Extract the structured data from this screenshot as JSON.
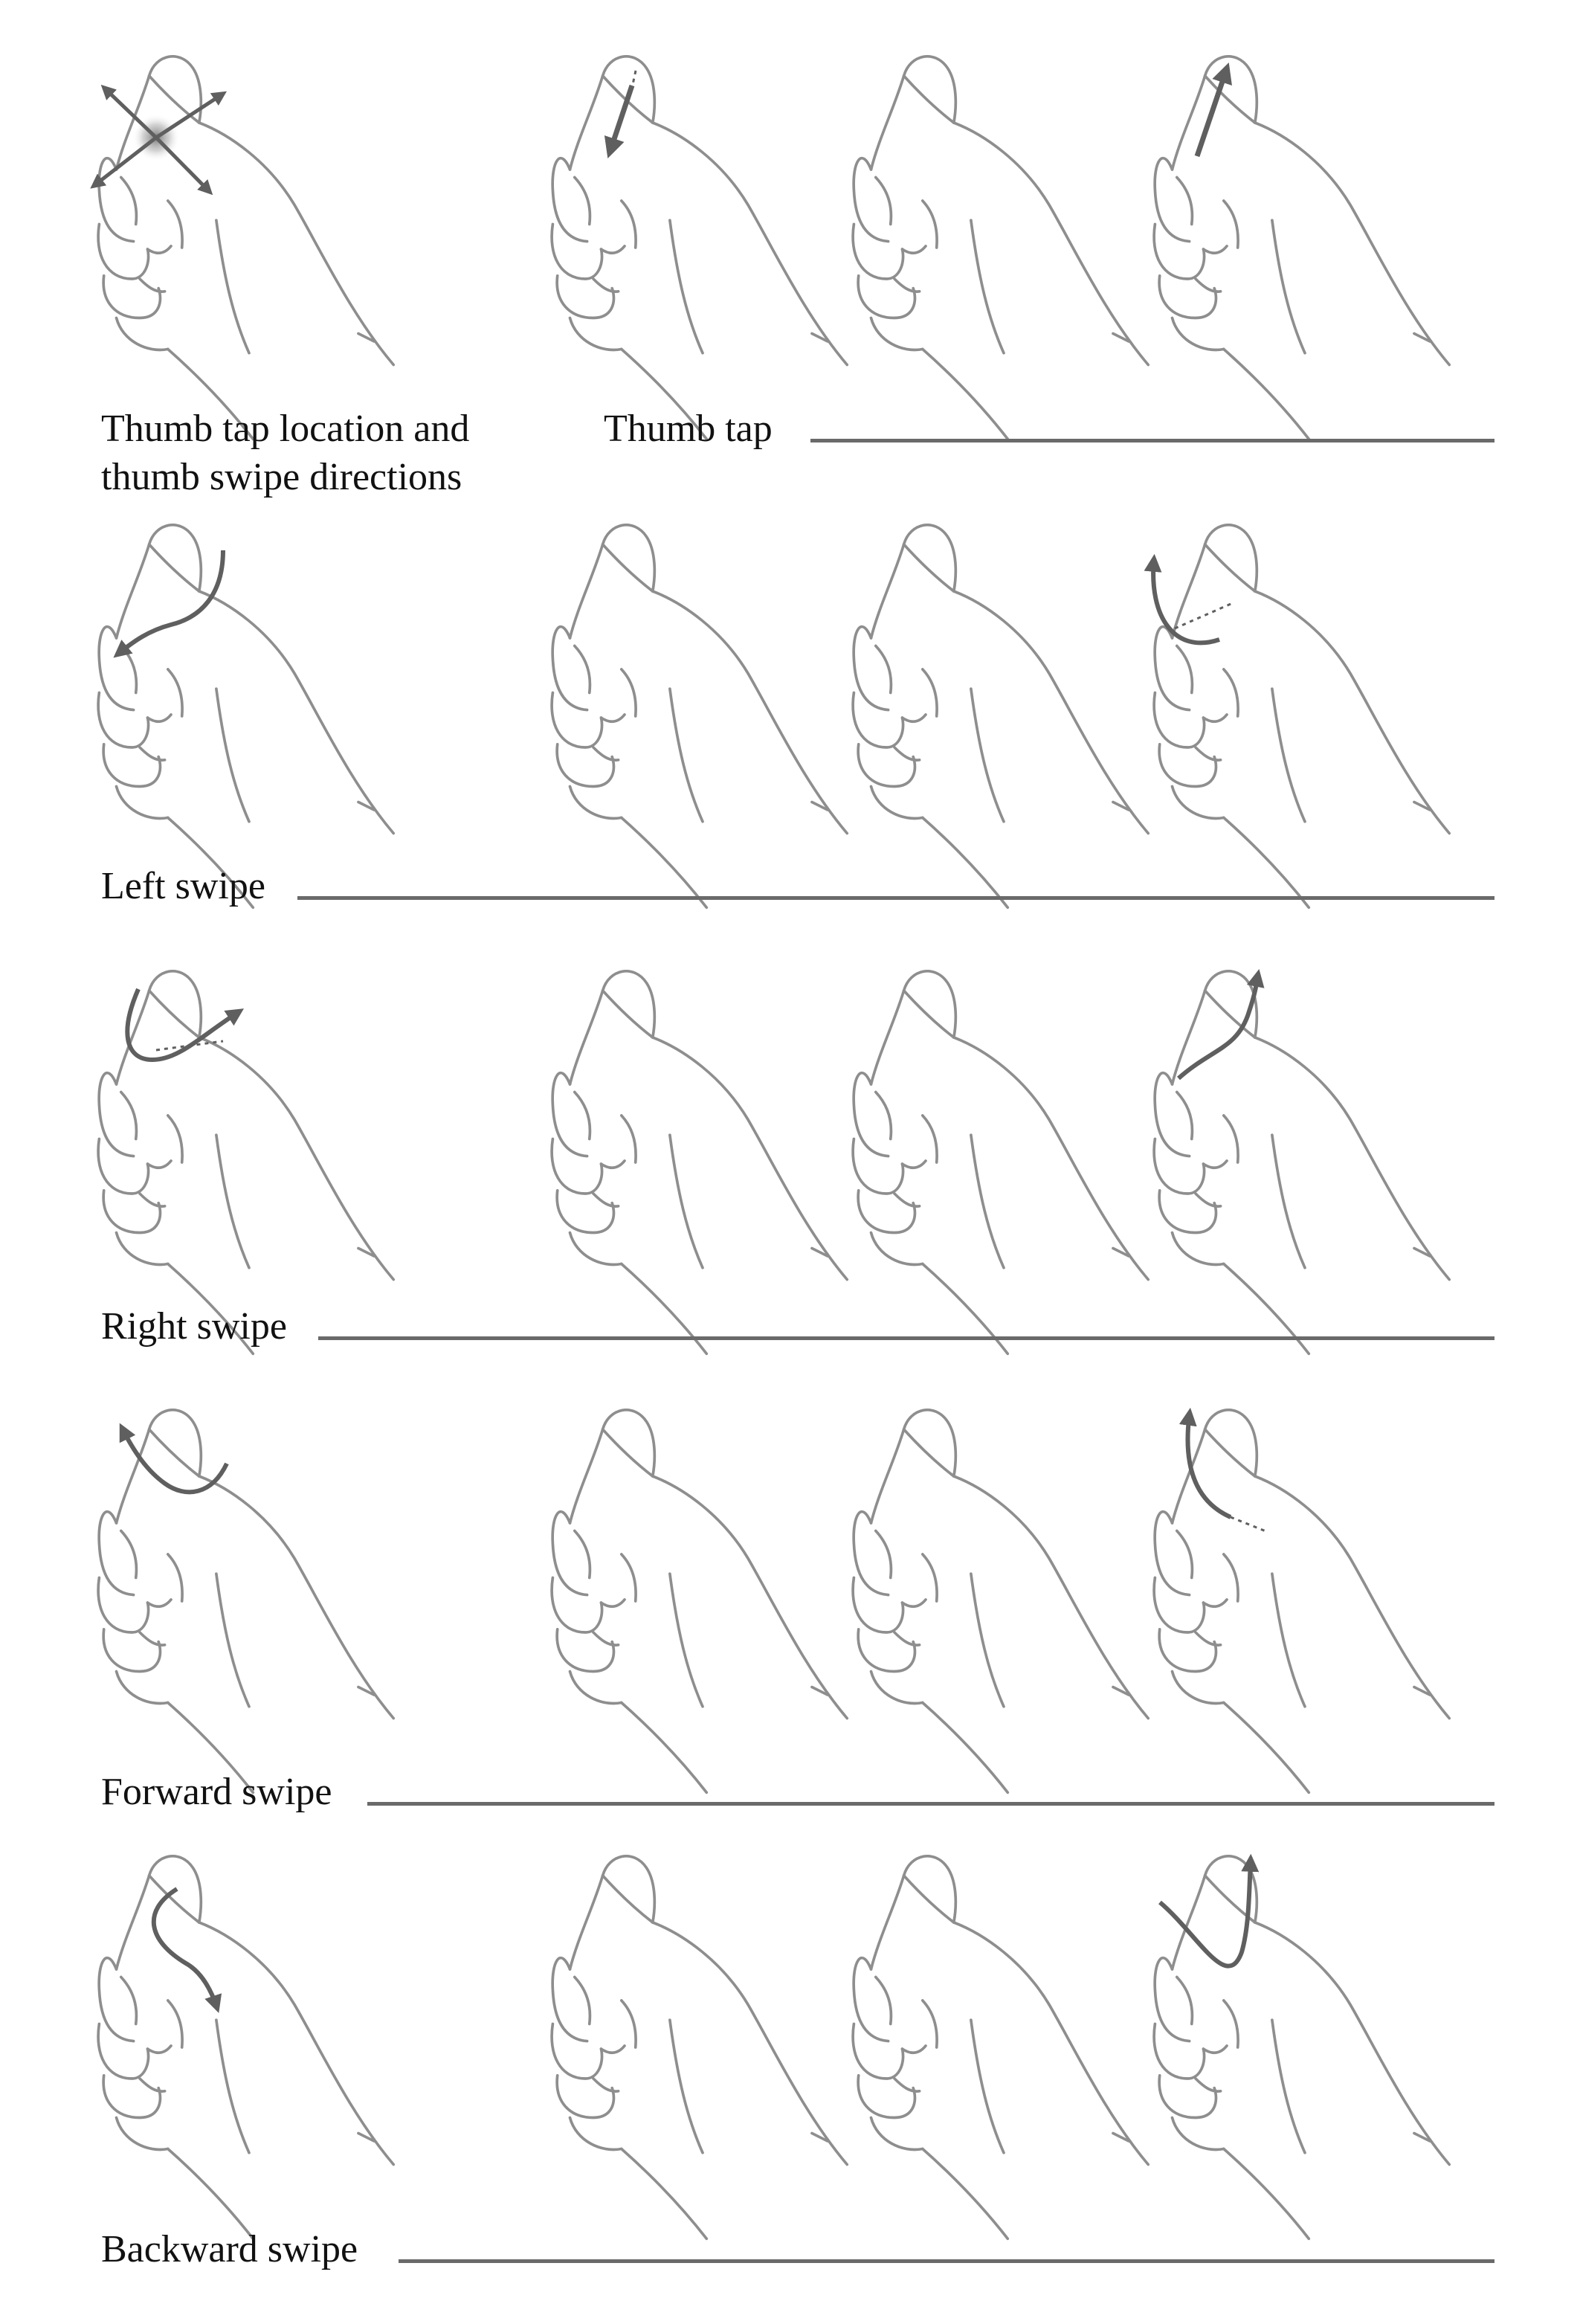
{
  "colors": {
    "hand_stroke": "#8e8e8e",
    "arrow": "#5f5f5f",
    "rule": "#6a6a6a",
    "text": "#111111",
    "background": "#ffffff"
  },
  "legend": {
    "line1": "Thumb tap location and",
    "line2": "thumb swipe directions"
  },
  "rows": [
    {
      "id": "tap",
      "label": "Thumb tap"
    },
    {
      "id": "left",
      "label": "Left swipe"
    },
    {
      "id": "right",
      "label": "Right swipe"
    },
    {
      "id": "forward",
      "label": "Forward swipe"
    },
    {
      "id": "backward",
      "label": "Backward swipe"
    }
  ]
}
